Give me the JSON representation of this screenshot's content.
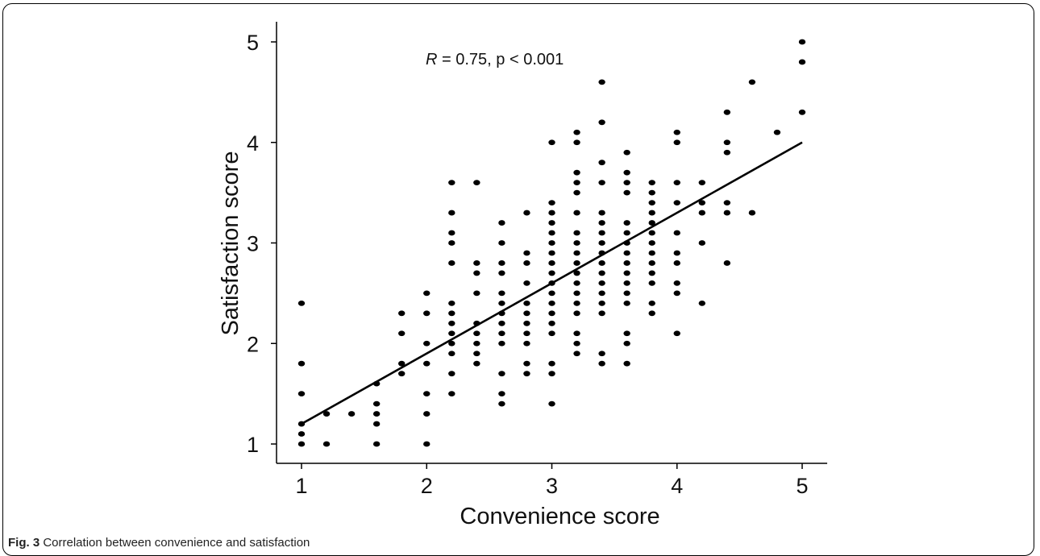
{
  "caption": {
    "label": "Fig. 3",
    "text": "Correlation between convenience and satisfaction"
  },
  "chart_data": {
    "type": "scatter",
    "title": "",
    "xlabel": "Convenience score",
    "ylabel": "Satisfaction score",
    "xlim": [
      0.8,
      5.2
    ],
    "ylim": [
      0.9,
      5.2
    ],
    "xticks": [
      1,
      2,
      3,
      4,
      5
    ],
    "yticks": [
      1,
      2,
      3,
      4,
      5
    ],
    "grid": false,
    "annotation": {
      "r_label": "R",
      "text": " = 0.75, p < 0.001"
    },
    "series": [
      {
        "points": [
          [
            1.0,
            1.0
          ],
          [
            1.0,
            1.1
          ],
          [
            1.0,
            1.2
          ],
          [
            1.0,
            1.5
          ],
          [
            1.0,
            1.8
          ],
          [
            1.0,
            2.4
          ],
          [
            1.2,
            1.0
          ],
          [
            1.2,
            1.3
          ],
          [
            1.4,
            1.3
          ],
          [
            1.6,
            1.0
          ],
          [
            1.6,
            1.2
          ],
          [
            1.6,
            1.3
          ],
          [
            1.6,
            1.4
          ],
          [
            1.6,
            1.6
          ],
          [
            1.8,
            1.7
          ],
          [
            1.8,
            1.8
          ],
          [
            1.8,
            2.1
          ],
          [
            1.8,
            2.3
          ],
          [
            2.0,
            1.0
          ],
          [
            2.0,
            1.3
          ],
          [
            2.0,
            1.5
          ],
          [
            2.0,
            1.8
          ],
          [
            2.0,
            2.0
          ],
          [
            2.0,
            2.3
          ],
          [
            2.0,
            2.5
          ],
          [
            2.2,
            1.5
          ],
          [
            2.2,
            1.7
          ],
          [
            2.2,
            1.9
          ],
          [
            2.2,
            2.0
          ],
          [
            2.2,
            2.1
          ],
          [
            2.2,
            2.2
          ],
          [
            2.2,
            2.3
          ],
          [
            2.2,
            2.4
          ],
          [
            2.2,
            2.8
          ],
          [
            2.2,
            3.0
          ],
          [
            2.2,
            3.1
          ],
          [
            2.2,
            3.3
          ],
          [
            2.2,
            3.6
          ],
          [
            2.4,
            1.8
          ],
          [
            2.4,
            1.9
          ],
          [
            2.4,
            2.0
          ],
          [
            2.4,
            2.1
          ],
          [
            2.4,
            2.2
          ],
          [
            2.4,
            2.5
          ],
          [
            2.4,
            2.7
          ],
          [
            2.4,
            2.8
          ],
          [
            2.4,
            3.6
          ],
          [
            2.6,
            1.4
          ],
          [
            2.6,
            1.5
          ],
          [
            2.6,
            1.7
          ],
          [
            2.6,
            2.0
          ],
          [
            2.6,
            2.1
          ],
          [
            2.6,
            2.2
          ],
          [
            2.6,
            2.3
          ],
          [
            2.6,
            2.4
          ],
          [
            2.6,
            2.5
          ],
          [
            2.6,
            2.7
          ],
          [
            2.6,
            2.8
          ],
          [
            2.6,
            3.0
          ],
          [
            2.6,
            3.2
          ],
          [
            2.8,
            1.7
          ],
          [
            2.8,
            1.8
          ],
          [
            2.8,
            2.0
          ],
          [
            2.8,
            2.1
          ],
          [
            2.8,
            2.2
          ],
          [
            2.8,
            2.3
          ],
          [
            2.8,
            2.4
          ],
          [
            2.8,
            2.6
          ],
          [
            2.8,
            2.8
          ],
          [
            2.8,
            2.9
          ],
          [
            2.8,
            3.3
          ],
          [
            3.0,
            1.4
          ],
          [
            3.0,
            1.7
          ],
          [
            3.0,
            1.8
          ],
          [
            3.0,
            2.1
          ],
          [
            3.0,
            2.2
          ],
          [
            3.0,
            2.3
          ],
          [
            3.0,
            2.4
          ],
          [
            3.0,
            2.5
          ],
          [
            3.0,
            2.6
          ],
          [
            3.0,
            2.7
          ],
          [
            3.0,
            2.8
          ],
          [
            3.0,
            2.9
          ],
          [
            3.0,
            3.0
          ],
          [
            3.0,
            3.1
          ],
          [
            3.0,
            3.2
          ],
          [
            3.0,
            3.3
          ],
          [
            3.0,
            3.4
          ],
          [
            3.0,
            4.0
          ],
          [
            3.2,
            1.9
          ],
          [
            3.2,
            2.0
          ],
          [
            3.2,
            2.1
          ],
          [
            3.2,
            2.3
          ],
          [
            3.2,
            2.4
          ],
          [
            3.2,
            2.5
          ],
          [
            3.2,
            2.6
          ],
          [
            3.2,
            2.7
          ],
          [
            3.2,
            2.8
          ],
          [
            3.2,
            2.9
          ],
          [
            3.2,
            3.0
          ],
          [
            3.2,
            3.1
          ],
          [
            3.2,
            3.3
          ],
          [
            3.2,
            3.5
          ],
          [
            3.2,
            3.6
          ],
          [
            3.2,
            3.7
          ],
          [
            3.2,
            4.0
          ],
          [
            3.2,
            4.1
          ],
          [
            3.4,
            1.8
          ],
          [
            3.4,
            1.9
          ],
          [
            3.4,
            2.3
          ],
          [
            3.4,
            2.4
          ],
          [
            3.4,
            2.5
          ],
          [
            3.4,
            2.6
          ],
          [
            3.4,
            2.7
          ],
          [
            3.4,
            2.8
          ],
          [
            3.4,
            2.9
          ],
          [
            3.4,
            3.0
          ],
          [
            3.4,
            3.1
          ],
          [
            3.4,
            3.2
          ],
          [
            3.4,
            3.3
          ],
          [
            3.4,
            3.6
          ],
          [
            3.4,
            3.8
          ],
          [
            3.4,
            4.2
          ],
          [
            3.4,
            4.6
          ],
          [
            3.6,
            1.8
          ],
          [
            3.6,
            2.0
          ],
          [
            3.6,
            2.1
          ],
          [
            3.6,
            2.4
          ],
          [
            3.6,
            2.5
          ],
          [
            3.6,
            2.6
          ],
          [
            3.6,
            2.7
          ],
          [
            3.6,
            2.8
          ],
          [
            3.6,
            2.9
          ],
          [
            3.6,
            3.0
          ],
          [
            3.6,
            3.1
          ],
          [
            3.6,
            3.2
          ],
          [
            3.6,
            3.5
          ],
          [
            3.6,
            3.6
          ],
          [
            3.6,
            3.7
          ],
          [
            3.6,
            3.9
          ],
          [
            3.8,
            2.3
          ],
          [
            3.8,
            2.4
          ],
          [
            3.8,
            2.6
          ],
          [
            3.8,
            2.7
          ],
          [
            3.8,
            2.8
          ],
          [
            3.8,
            2.9
          ],
          [
            3.8,
            3.0
          ],
          [
            3.8,
            3.1
          ],
          [
            3.8,
            3.2
          ],
          [
            3.8,
            3.3
          ],
          [
            3.8,
            3.4
          ],
          [
            3.8,
            3.5
          ],
          [
            3.8,
            3.6
          ],
          [
            4.0,
            2.1
          ],
          [
            4.0,
            2.5
          ],
          [
            4.0,
            2.6
          ],
          [
            4.0,
            2.8
          ],
          [
            4.0,
            2.9
          ],
          [
            4.0,
            3.1
          ],
          [
            4.0,
            3.4
          ],
          [
            4.0,
            3.6
          ],
          [
            4.0,
            4.0
          ],
          [
            4.0,
            4.1
          ],
          [
            4.2,
            2.4
          ],
          [
            4.2,
            3.0
          ],
          [
            4.2,
            3.3
          ],
          [
            4.2,
            3.4
          ],
          [
            4.2,
            3.6
          ],
          [
            4.4,
            2.8
          ],
          [
            4.4,
            3.3
          ],
          [
            4.4,
            3.4
          ],
          [
            4.4,
            3.9
          ],
          [
            4.4,
            4.0
          ],
          [
            4.4,
            4.3
          ],
          [
            4.6,
            3.3
          ],
          [
            4.6,
            4.6
          ],
          [
            4.8,
            4.1
          ],
          [
            5.0,
            4.3
          ],
          [
            5.0,
            4.8
          ],
          [
            5.0,
            5.0
          ]
        ]
      }
    ],
    "regression": {
      "x": [
        1.0,
        5.0
      ],
      "y": [
        1.2,
        4.0
      ]
    },
    "colors": {
      "points": "#000000",
      "line": "#000000"
    }
  }
}
